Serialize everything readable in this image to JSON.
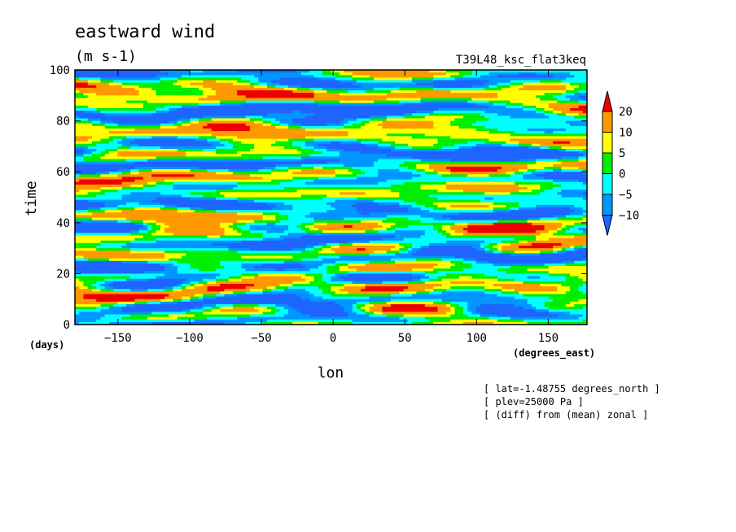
{
  "chart_data": {
    "type": "heatmap",
    "title": "eastward wind",
    "units": "(m s-1)",
    "run_label": "T39L48_ksc_flat3keq",
    "xlabel": "lon",
    "xunits": "(degrees_east)",
    "ylabel": "time",
    "yunits": "(days)",
    "xlim": [
      -180,
      177
    ],
    "ylim": [
      0,
      100
    ],
    "xticks": [
      -150,
      -100,
      -50,
      0,
      50,
      100,
      150
    ],
    "yticks": [
      0,
      20,
      40,
      60,
      80,
      100
    ],
    "color_levels": [
      -10,
      -5,
      0,
      5,
      10,
      20
    ],
    "color_level_labels": [
      "-10",
      "-5",
      "0",
      "5",
      "10",
      "20"
    ],
    "color_bins": [
      "#1e64ff",
      "#0096ff",
      "#00ffff",
      "#00ee00",
      "#ffff00",
      "#ff9900",
      "#ee0000"
    ],
    "colorbar_position": "right",
    "annotations": [
      "[ lat=-1.48755 degrees_north ]",
      "[ plev=25000 Pa ]",
      "[ (diff) from (mean) zonal ]"
    ]
  }
}
